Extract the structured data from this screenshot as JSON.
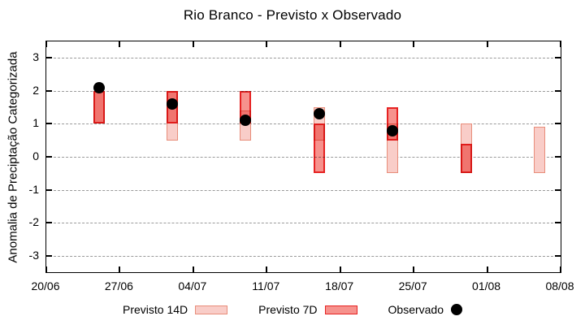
{
  "title": "Rio Branco - Previsto x Observado",
  "y_axis": {
    "label": "Anomalia de Preciptação Categorizada"
  },
  "legend": {
    "items": [
      {
        "label": "Previsto 14D"
      },
      {
        "label": "Previsto 7D"
      },
      {
        "label": "Observado"
      }
    ]
  },
  "colors": {
    "forecast14_fill": "#f9cdc8",
    "forecast14_border": "#e88d7a",
    "forecast7_fill": "#f6928d",
    "forecast7_border": "#e62222",
    "overlap_fill": "#f1726e",
    "observed_dot": "#000000",
    "gridline": "#9a9a9a",
    "frame": "#000000"
  },
  "chart_data": {
    "type": "bar",
    "subtype": "forecast-range-bars-with-observed-scatter",
    "title": "Rio Branco - Previsto x Observado",
    "xlabel": "",
    "ylabel": "Anomalia de Preciptação Categorizada",
    "ylim": [
      -3.5,
      3.5
    ],
    "yticks": [
      3,
      2,
      1,
      0,
      -1,
      -2,
      -3
    ],
    "xlim_days": [
      0,
      49
    ],
    "xticks": [
      {
        "day": 0,
        "label": "20/06"
      },
      {
        "day": 7,
        "label": "27/06"
      },
      {
        "day": 14,
        "label": "04/07"
      },
      {
        "day": 21,
        "label": "11/07"
      },
      {
        "day": 28,
        "label": "18/07"
      },
      {
        "day": 35,
        "label": "25/07"
      },
      {
        "day": 42,
        "label": "01/08"
      },
      {
        "day": 49,
        "label": "08/08"
      }
    ],
    "grid": "horizontal dashed at every integer y",
    "legend_position": "bottom-center",
    "series": [
      {
        "name": "Previsto 14D",
        "style": "range-bar",
        "points": [
          {
            "date": "25/06",
            "day": 5,
            "low": 1.0,
            "high": 2.0
          },
          {
            "date": "02/07",
            "day": 12,
            "low": 0.5,
            "high": 2.0
          },
          {
            "date": "09/07",
            "day": 19,
            "low": 0.5,
            "high": 1.4
          },
          {
            "date": "16/07",
            "day": 26,
            "low": 0.5,
            "high": 1.5
          },
          {
            "date": "23/07",
            "day": 33,
            "low": -0.5,
            "high": 1.0
          },
          {
            "date": "30/07",
            "day": 40,
            "low": -0.5,
            "high": 1.0
          },
          {
            "date": "06/08",
            "day": 47,
            "low": -0.5,
            "high": 0.9
          }
        ]
      },
      {
        "name": "Previsto 7D",
        "style": "range-bar",
        "points": [
          {
            "date": "25/06",
            "day": 5,
            "low": 1.0,
            "high": 2.0
          },
          {
            "date": "02/07",
            "day": 12,
            "low": 1.0,
            "high": 2.0
          },
          {
            "date": "09/07",
            "day": 19,
            "low": 1.0,
            "high": 2.0
          },
          {
            "date": "16/07",
            "day": 26,
            "low": -0.5,
            "high": 1.0
          },
          {
            "date": "23/07",
            "day": 33,
            "low": 0.5,
            "high": 1.5
          },
          {
            "date": "30/07",
            "day": 40,
            "low": -0.5,
            "high": 0.4
          }
        ]
      },
      {
        "name": "Observado",
        "style": "scatter-dot",
        "points": [
          {
            "date": "25/06",
            "day": 5,
            "value": 2.1
          },
          {
            "date": "02/07",
            "day": 12,
            "value": 1.6
          },
          {
            "date": "09/07",
            "day": 19,
            "value": 1.1
          },
          {
            "date": "16/07",
            "day": 26,
            "value": 1.3
          },
          {
            "date": "23/07",
            "day": 33,
            "value": 0.8
          }
        ]
      }
    ]
  }
}
